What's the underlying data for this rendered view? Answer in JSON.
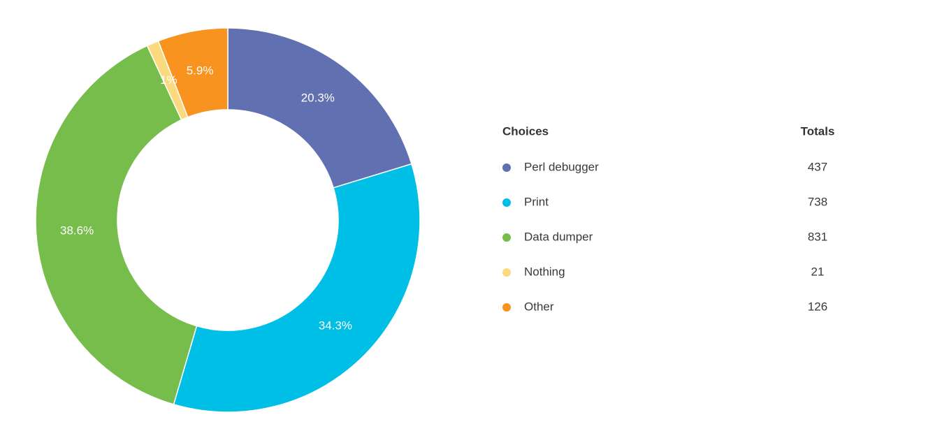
{
  "chart_data": {
    "type": "donut",
    "categories": [
      "Perl debugger",
      "Print",
      "Data dumper",
      "Nothing",
      "Other"
    ],
    "values": [
      20.3,
      34.3,
      38.6,
      1,
      5.9
    ],
    "value_labels": [
      "20.3%",
      "34.3%",
      "38.6%",
      "1%",
      "5.9%"
    ],
    "colors": [
      "#6170b0",
      "#00bfe6",
      "#76bd4b",
      "#fbd97e",
      "#f7931e"
    ]
  },
  "table": {
    "headers": [
      "Choices",
      "Totals"
    ],
    "totals": [
      437,
      738,
      831,
      21,
      126
    ]
  }
}
